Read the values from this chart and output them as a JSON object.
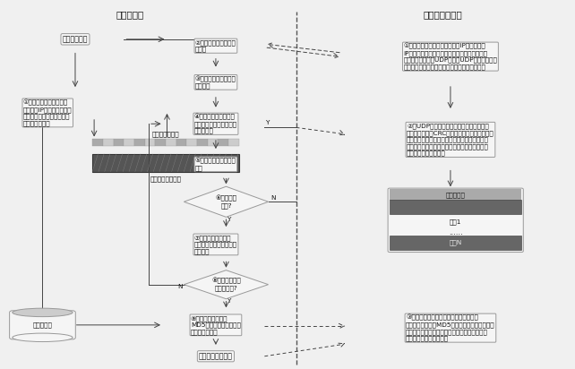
{
  "title_left": "地面段操作",
  "title_right": "空间段卫星操作",
  "bg": "#f0f0f0",
  "box_fc": "#f5f5f5",
  "box_ec": "#999999",
  "dark_band": "#555555",
  "arrow_color": "#444444",
  "text_color": "#111111",
  "divider_color": "#555555",
  "fs": 5.2,
  "ts": 7.5,
  "start_text": "传输过程开始",
  "step1_text": "①提取源数据并按协议封\n装相应的IP业务帧，逐帧将\n数据置入待发送队列并生成\n待发送帧检索表",
  "step2_text": "②进入训练模式，发送\n训练帧",
  "step3_text": "③结束训练模式，确定\n发送周期",
  "step4_text": "④通过待发送帧检索表\n逐次检索待发送数据帧，\n并进行发送",
  "step5_text": "⑤发送过程异常判别与\n处理",
  "step6_text": "⑥是否出现\n异常?",
  "step7_text": "⑦根据响应中的帧号\n从待发送帧检索表中移除\n对应表项",
  "step8_text": "⑧待发送帧检索\n表是否为空?",
  "step9_text": "⑨计算源数据文件的\nMD5摘要值，组帧并发送\n传输结束确认帧",
  "end_text": "传输过程成功结束",
  "src_text": "源数据文件",
  "table_label": "待发送帧检索表",
  "queue_label": "待发送数据帧队列",
  "storage_title": "数据存储区",
  "storage_seg1": "区段1",
  "storage_segN": "区段N",
  "sat1_text": "①解析卫星链路帧，判别是否为IP报文且目的\nIP为本设备，若不满足则进行路由转发；若满足\n条件，判别是否为UDP报文且UDP端口号为重构\n业务端口，若是则唤醒侦听进程进行后续处理。",
  "sat2_text": "②今UDP报文中解析出重构上传数据帧，对\n接收帧数据进行CRC校验，校验无误后根据区段\n标识确定写入区段，根据帧号及数据帧长度计算\n偏移量，将接收数据写入对应存储区地址，写入\n结束后给出确认响应。",
  "sat3_text": "③接收到传输结束确认帧，计算写入区段\n中所有写入数据的MD5摘要值并与地面计算结果\n进行比对，比对无误后给出成功响应；更新星地\n数据传输控制状态标志。"
}
